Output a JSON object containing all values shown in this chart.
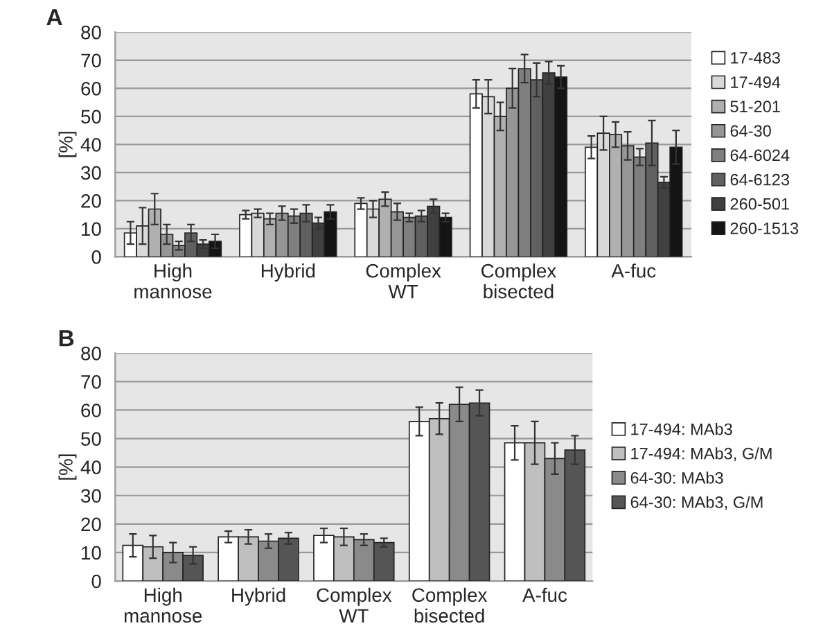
{
  "chart_data": [
    {
      "type": "bar",
      "title": "A",
      "ylabel": "[%]",
      "categories": [
        "High\nmannose",
        "Hybrid",
        "Complex\nWT",
        "Complex\nbisected",
        "A-fuc"
      ],
      "ylim": [
        0,
        80
      ],
      "yticks": [
        0,
        10,
        20,
        30,
        40,
        50,
        60,
        70,
        80
      ],
      "grid": "y",
      "legend": "right",
      "series": [
        {
          "name": "17-483",
          "color": "#ffffff",
          "values": [
            8.5,
            15,
            19,
            58,
            39
          ],
          "errors": [
            4,
            1.5,
            2,
            5,
            4
          ]
        },
        {
          "name": "17-494",
          "color": "#d9d9d9",
          "values": [
            11,
            15.5,
            17,
            57,
            44
          ],
          "errors": [
            6.5,
            1.5,
            3,
            6,
            6
          ]
        },
        {
          "name": "51-201",
          "color": "#b0b0b0",
          "values": [
            17,
            13.5,
            20.5,
            50,
            43.5
          ],
          "errors": [
            5.5,
            2,
            2.5,
            5,
            4.5
          ]
        },
        {
          "name": "64-30",
          "color": "#969696",
          "values": [
            8,
            15.5,
            16,
            60,
            39.5
          ],
          "errors": [
            3.5,
            2.5,
            3,
            7,
            5
          ]
        },
        {
          "name": "64-6024",
          "color": "#7f7f7f",
          "values": [
            4,
            14.5,
            14,
            67,
            35.5
          ],
          "errors": [
            1.5,
            2.5,
            1.5,
            5,
            3
          ]
        },
        {
          "name": "64-6123",
          "color": "#606060",
          "values": [
            8.5,
            15.5,
            14.5,
            63,
            40.5
          ],
          "errors": [
            3,
            3,
            2,
            6,
            8
          ]
        },
        {
          "name": "260-501",
          "color": "#404040",
          "values": [
            4.5,
            12,
            18,
            65.5,
            26.5
          ],
          "errors": [
            1.5,
            2,
            2.5,
            4,
            2
          ]
        },
        {
          "name": "260-1513",
          "color": "#141414",
          "values": [
            5.5,
            16,
            14,
            64,
            39
          ],
          "errors": [
            2.5,
            2.5,
            1.5,
            4,
            6
          ]
        }
      ]
    },
    {
      "type": "bar",
      "title": "B",
      "ylabel": "[%]",
      "categories": [
        "High\nmannose",
        "Hybrid",
        "Complex\nWT",
        "Complex\nbisected",
        "A-fuc"
      ],
      "ylim": [
        0,
        80
      ],
      "yticks": [
        0,
        10,
        20,
        30,
        40,
        50,
        60,
        70,
        80
      ],
      "grid": "y",
      "legend": "right",
      "series": [
        {
          "name": "17-494: MAb3",
          "color": "#ffffff",
          "values": [
            12.5,
            15.5,
            16,
            56,
            48.5
          ],
          "errors": [
            4,
            2,
            2.5,
            5,
            6
          ]
        },
        {
          "name": "17-494: MAb3, G/M",
          "color": "#bfbfbf",
          "values": [
            12,
            15.5,
            15.5,
            57,
            48.5
          ],
          "errors": [
            4,
            2.5,
            3,
            5.5,
            7.5
          ]
        },
        {
          "name": "64-30: MAb3",
          "color": "#8a8a8a",
          "values": [
            10,
            14,
            14.5,
            62,
            43
          ],
          "errors": [
            3.5,
            2.5,
            2,
            6,
            5.5
          ]
        },
        {
          "name": "64-30: MAb3, G/M",
          "color": "#555555",
          "values": [
            9,
            15,
            13.5,
            62.5,
            46
          ],
          "errors": [
            3,
            2,
            1.5,
            4.5,
            5
          ]
        }
      ]
    }
  ]
}
